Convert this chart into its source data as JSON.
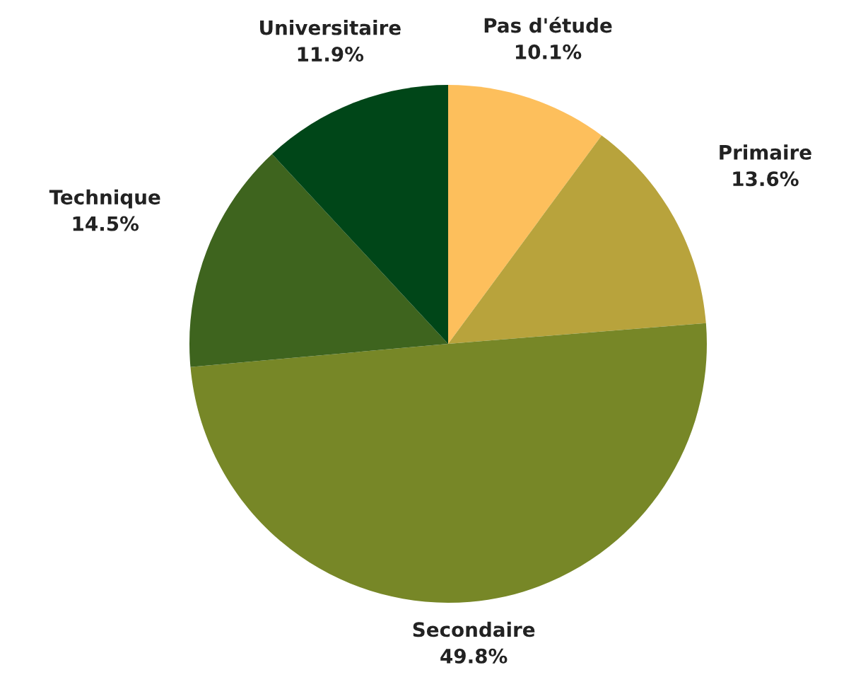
{
  "chart_data": {
    "type": "pie",
    "categories": [
      "Pas d'étude",
      "Primaire",
      "Secondaire",
      "Technique",
      "Universitaire"
    ],
    "values": [
      10.1,
      13.6,
      49.8,
      14.5,
      11.9
    ],
    "value_labels": [
      "10.1%",
      "13.6%",
      "49.8%",
      "14.5%",
      "11.9%"
    ],
    "colors": [
      "#fdbf5c",
      "#b8a33c",
      "#778727",
      "#3e641e",
      "#004618"
    ]
  }
}
